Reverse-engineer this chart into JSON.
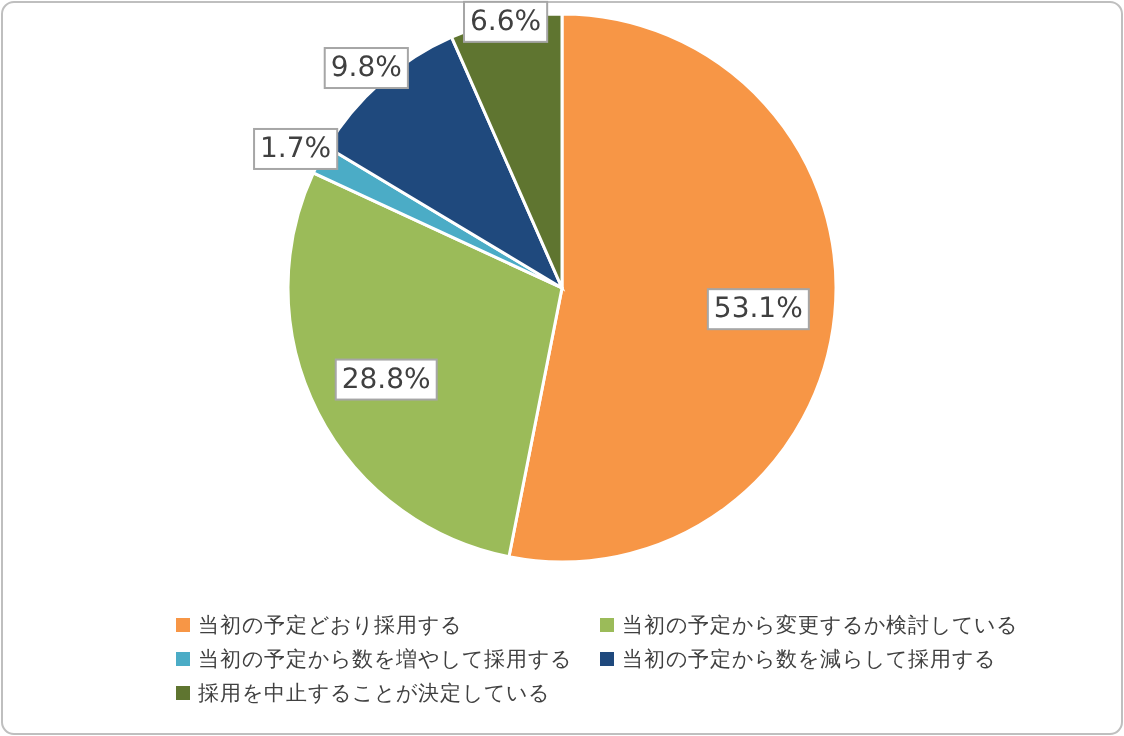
{
  "chart_data": {
    "type": "pie",
    "categories": [
      "当初の予定どおり採用する",
      "当初の予定から変更するか検討している",
      "当初の予定から数を増やして採用する",
      "当初の予定から数を減らして採用する",
      "採用を中止することが決定している"
    ],
    "values": [
      53.1,
      28.8,
      1.7,
      9.8,
      6.6
    ],
    "colors": [
      "#f79646",
      "#9bbb59",
      "#4bacc6",
      "#1f497d",
      "#5f7530"
    ],
    "value_labels": [
      "53.1%",
      "28.8%",
      "1.7%",
      "9.8%",
      "6.6%"
    ],
    "legend": "bottom"
  }
}
